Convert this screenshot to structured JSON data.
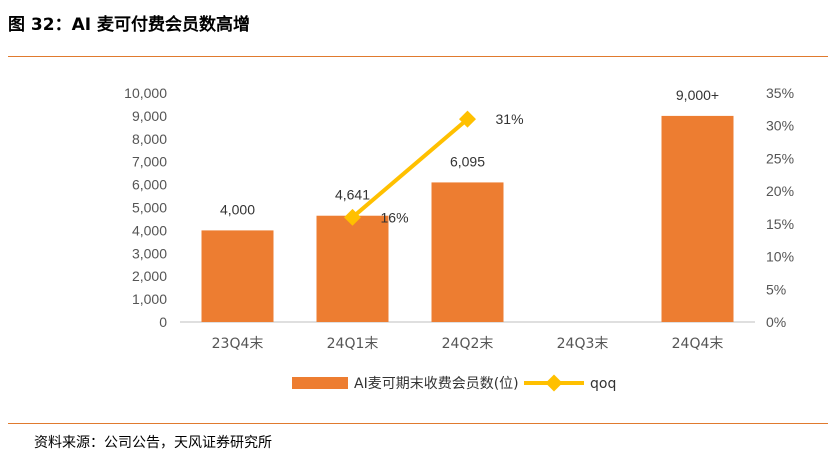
{
  "header": {
    "title": "图 32：AI 麦可付费会员数高增"
  },
  "footer": {
    "source": "资料来源：公司公告，天风证券研究所"
  },
  "colors": {
    "bar": "#ed7d31",
    "line": "#ffc000",
    "rule": "#e07a2e"
  },
  "chart_data": {
    "type": "bar",
    "title": "",
    "categories": [
      "23Q4末",
      "24Q1末",
      "24Q2末",
      "24Q3末",
      "24Q4末"
    ],
    "series": [
      {
        "name": "AI麦可期末收费会员数(位)",
        "type": "bar",
        "axis": "left",
        "values": [
          4000,
          4641,
          6095,
          null,
          9000
        ],
        "labels": [
          "4,000",
          "4,641",
          "6,095",
          "",
          "9,000+"
        ]
      },
      {
        "name": "qoq",
        "type": "line",
        "axis": "right",
        "values": [
          null,
          16,
          31,
          null,
          null
        ],
        "labels": [
          "",
          "16%",
          "31%",
          "",
          ""
        ]
      }
    ],
    "left_axis": {
      "min": 0,
      "max": 10000,
      "step": 1000,
      "tick_labels": [
        "0",
        "1,000",
        "2,000",
        "3,000",
        "4,000",
        "5,000",
        "6,000",
        "7,000",
        "8,000",
        "9,000",
        "10,000"
      ]
    },
    "right_axis": {
      "min": 0,
      "max": 35,
      "step": 5,
      "tick_labels": [
        "0%",
        "5%",
        "10%",
        "15%",
        "20%",
        "25%",
        "30%",
        "35%"
      ]
    },
    "grid": false,
    "legend_position": "bottom"
  }
}
